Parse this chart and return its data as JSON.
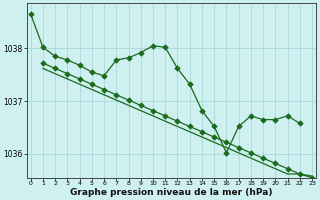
{
  "bg_color": "#cff0f0",
  "grid_color": "#a8d8d8",
  "line_color": "#1a6b1a",
  "xlabel": "Graphe pression niveau de la mer (hPa)",
  "xlabel_fontsize": 6.5,
  "yticks": [
    1036,
    1037,
    1038
  ],
  "ylim": [
    1035.55,
    1038.85
  ],
  "xlim": [
    -0.3,
    23.3
  ],
  "xticks": [
    0,
    1,
    2,
    3,
    4,
    5,
    6,
    7,
    8,
    9,
    10,
    11,
    12,
    13,
    14,
    15,
    16,
    17,
    18,
    19,
    20,
    21,
    22,
    23
  ],
  "s1x": [
    0,
    1,
    2,
    3,
    4,
    5,
    6,
    7,
    8,
    9,
    10,
    11,
    12,
    13,
    14,
    15,
    16,
    17,
    18,
    19,
    20,
    21,
    22
  ],
  "s1y": [
    1038.65,
    1038.02,
    1037.85,
    1037.78,
    1037.68,
    1037.55,
    1037.48,
    1037.78,
    1037.82,
    1037.92,
    1038.05,
    1038.02,
    1037.62,
    1037.32,
    1036.82,
    1036.52,
    1036.02,
    1036.52,
    1036.72,
    1036.65,
    1036.65,
    1036.72,
    1036.58
  ],
  "s2x": [
    1,
    2,
    3,
    4,
    5,
    6,
    7,
    8,
    9,
    10,
    11,
    12,
    13,
    14,
    15,
    16,
    17,
    18,
    19,
    20,
    21,
    22,
    23
  ],
  "s2y": [
    1037.72,
    1037.62,
    1037.52,
    1037.42,
    1037.32,
    1037.22,
    1037.12,
    1037.02,
    1036.92,
    1036.82,
    1036.72,
    1036.62,
    1036.52,
    1036.42,
    1036.32,
    1036.22,
    1036.12,
    1036.02,
    1035.92,
    1035.82,
    1035.72,
    1035.62,
    1035.55
  ],
  "s3x": [
    1,
    2,
    3,
    4,
    5,
    6,
    7,
    8,
    9,
    10,
    11,
    12,
    13,
    14,
    15,
    16,
    17,
    18,
    19,
    20,
    21,
    22,
    23
  ],
  "s3y": [
    1037.62,
    1037.52,
    1037.42,
    1037.32,
    1037.22,
    1037.12,
    1037.02,
    1036.92,
    1036.82,
    1036.72,
    1036.62,
    1036.52,
    1036.42,
    1036.32,
    1036.22,
    1036.12,
    1036.02,
    1035.92,
    1035.82,
    1035.72,
    1035.62,
    1035.62,
    1035.58
  ]
}
